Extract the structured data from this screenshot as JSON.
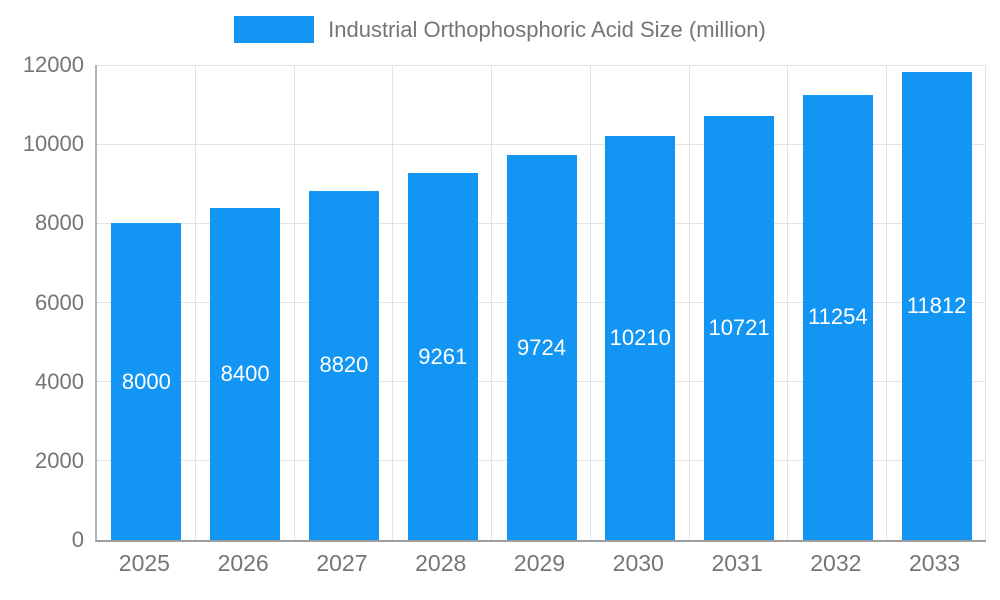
{
  "legend": {
    "label": "Industrial Orthophosphoric Acid Size (million)"
  },
  "colors": {
    "bar": "#1295f3",
    "bar_label_text": "#ffffff",
    "axis_text": "#757575",
    "grid": "#e3e3e3",
    "axis_line": "#9e9e9e"
  },
  "chart_data": {
    "type": "bar",
    "title": "Industrial Orthophosphoric Acid Size (million)",
    "categories": [
      "2025",
      "2026",
      "2027",
      "2028",
      "2029",
      "2030",
      "2031",
      "2032",
      "2033"
    ],
    "values": [
      8000,
      8400,
      8820,
      9261,
      9724,
      10210,
      10721,
      11254,
      11812
    ],
    "xlabel": "",
    "ylabel": "",
    "ylim": [
      0,
      12000
    ],
    "yticks": [
      0,
      2000,
      4000,
      6000,
      8000,
      10000,
      12000
    ],
    "grid": true,
    "legend_position": "top",
    "data_labels": "inside-center"
  }
}
